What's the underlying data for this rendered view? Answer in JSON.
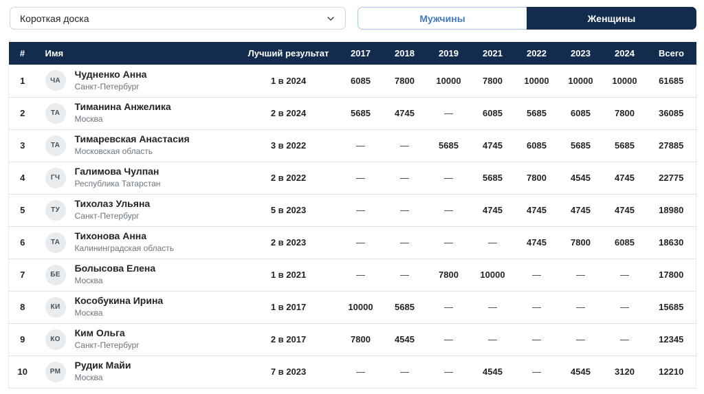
{
  "colors": {
    "navy": "#132c4e",
    "tab_text_blue": "#4679b8",
    "tab_border_blue": "#a9c6e8",
    "row_border": "#dee2e6",
    "text_dark": "#212529",
    "text_muted": "#6c757d",
    "avatar_bg": "#e9ecef",
    "avatar_text": "#495057",
    "input_border": "#ced4da"
  },
  "filters": {
    "discipline_select": {
      "value": "Короткая доска",
      "chevron_icon": "chevron-down"
    },
    "gender_tabs": [
      {
        "label": "Мужчины",
        "active": false
      },
      {
        "label": "Женщины",
        "active": true
      }
    ]
  },
  "table": {
    "columns": {
      "rank": "#",
      "name": "Имя",
      "best": "Лучший результат",
      "years": [
        "2017",
        "2018",
        "2019",
        "2021",
        "2022",
        "2023",
        "2024"
      ],
      "total": "Всего"
    },
    "empty_cell": "—",
    "rows": [
      {
        "rank": 1,
        "initials": "ЧА",
        "name": "Чудненко Анна",
        "region": "Санкт-Петербург",
        "best": "1 в 2024",
        "scores": [
          6085,
          7800,
          10000,
          7800,
          10000,
          10000,
          10000
        ],
        "total": 61685
      },
      {
        "rank": 2,
        "initials": "ТА",
        "name": "Тиманина Анжелика",
        "region": "Москва",
        "best": "2 в 2024",
        "scores": [
          5685,
          4745,
          "—",
          6085,
          5685,
          6085,
          7800
        ],
        "total": 36085
      },
      {
        "rank": 3,
        "initials": "ТА",
        "name": "Тимаревская Анастасия",
        "region": "Московская область",
        "best": "3 в 2022",
        "scores": [
          "—",
          "—",
          5685,
          4745,
          6085,
          5685,
          5685
        ],
        "total": 27885
      },
      {
        "rank": 4,
        "initials": "ГЧ",
        "name": "Галимова Чулпан",
        "region": "Республика Татарстан",
        "best": "2 в 2022",
        "scores": [
          "—",
          "—",
          "—",
          5685,
          7800,
          4545,
          4745
        ],
        "total": 22775
      },
      {
        "rank": 5,
        "initials": "ТУ",
        "name": "Тихолаз Ульяна",
        "region": "Санкт-Петербург",
        "best": "5 в 2023",
        "scores": [
          "—",
          "—",
          "—",
          4745,
          4745,
          4745,
          4745
        ],
        "total": 18980
      },
      {
        "rank": 6,
        "initials": "ТА",
        "name": "Тихонова Анна",
        "region": "Калининградская область",
        "best": "2 в 2023",
        "scores": [
          "—",
          "—",
          "—",
          "—",
          4745,
          7800,
          6085
        ],
        "total": 18630
      },
      {
        "rank": 7,
        "initials": "БЕ",
        "name": "Болысова Елена",
        "region": "Москва",
        "best": "1 в 2021",
        "scores": [
          "—",
          "—",
          7800,
          10000,
          "—",
          "—",
          "—"
        ],
        "total": 17800
      },
      {
        "rank": 8,
        "initials": "КИ",
        "name": "Кособукина Ирина",
        "region": "Москва",
        "best": "1 в 2017",
        "scores": [
          10000,
          5685,
          "—",
          "—",
          "—",
          "—",
          "—"
        ],
        "total": 15685
      },
      {
        "rank": 9,
        "initials": "КО",
        "name": "Ким Ольга",
        "region": "Санкт-Петербург",
        "best": "2 в 2017",
        "scores": [
          7800,
          4545,
          "—",
          "—",
          "—",
          "—",
          "—"
        ],
        "total": 12345
      },
      {
        "rank": 10,
        "initials": "РМ",
        "name": "Рудик Майи",
        "region": "Москва",
        "best": "7 в 2023",
        "scores": [
          "—",
          "—",
          "—",
          4545,
          "—",
          4545,
          3120
        ],
        "total": 12210
      }
    ]
  }
}
